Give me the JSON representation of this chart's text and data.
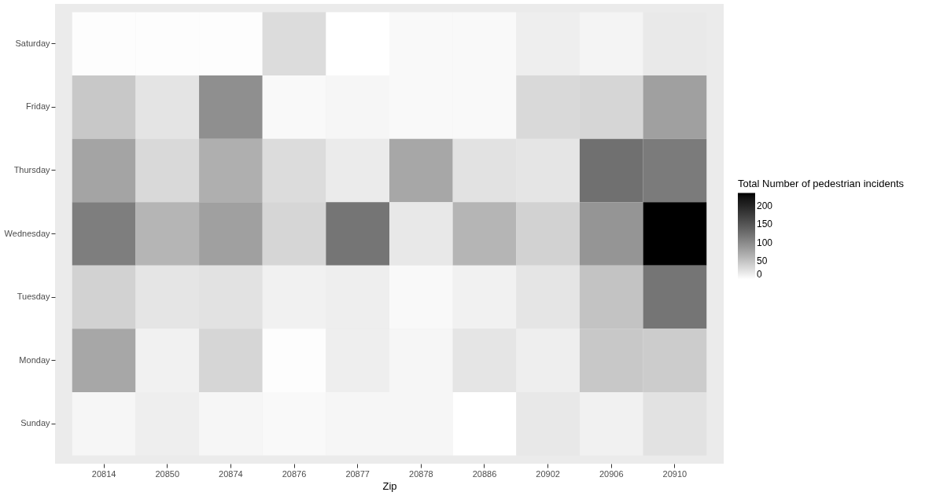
{
  "chart_data": {
    "type": "heatmap",
    "xlabel": "Zip",
    "clabel": "Total Number of pedestrian incidents",
    "categories": [
      "20814",
      "20850",
      "20874",
      "20876",
      "20877",
      "20878",
      "20886",
      "20902",
      "20906",
      "20910"
    ],
    "y_categories": [
      "Saturday",
      "Friday",
      "Thursday",
      "Wednesday",
      "Tuesday",
      "Monday",
      "Sunday"
    ],
    "cells": [
      [
        2,
        2,
        2,
        29,
        0,
        5,
        5,
        14,
        9,
        18
      ],
      [
        46,
        22,
        95,
        5,
        7,
        5,
        5,
        31,
        34,
        80
      ],
      [
        77,
        31,
        67,
        29,
        16,
        74,
        24,
        21,
        124,
        114
      ],
      [
        111,
        62,
        80,
        34,
        119,
        19,
        62,
        37,
        90,
        235
      ],
      [
        37,
        21,
        24,
        11,
        14,
        5,
        11,
        21,
        50,
        119
      ],
      [
        74,
        11,
        34,
        2,
        14,
        7,
        21,
        14,
        46,
        42
      ],
      [
        7,
        14,
        7,
        5,
        7,
        7,
        0,
        19,
        11,
        24
      ]
    ],
    "clim": [
      0,
      235
    ],
    "cticks": [
      0,
      50,
      100,
      150,
      200
    ]
  }
}
